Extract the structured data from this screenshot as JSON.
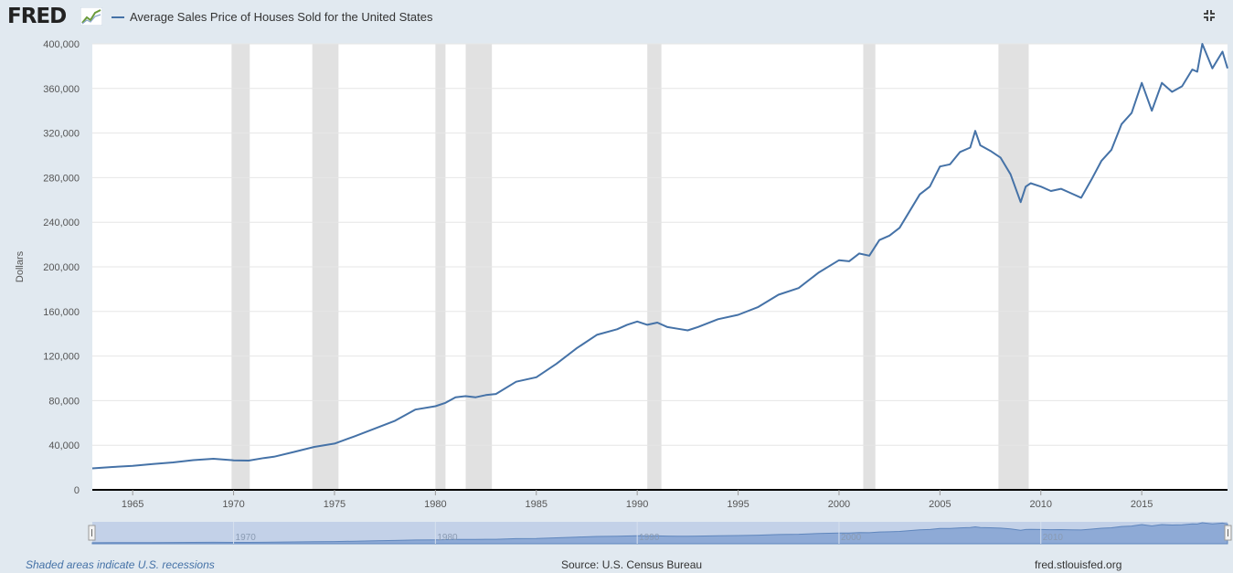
{
  "header": {
    "logo_text": "FRED",
    "title": "Average Sales Price of Houses Sold for the United States",
    "fullscreen_icon": "collapse-icon"
  },
  "footer": {
    "recessions_note": "Shaded areas indicate U.S. recessions",
    "source": "Source: U.S. Census Bureau",
    "site": "fred.stlouisfed.org"
  },
  "colors": {
    "series": "#4572a7",
    "recession": "#e1e1e1",
    "navigator": "#c3d1e8",
    "navigator_fill": "#8eaad6"
  },
  "chart_data": {
    "type": "line",
    "title": "Average Sales Price of Houses Sold for the United States",
    "ylabel": "Dollars",
    "xlabel": "",
    "xlim": [
      1963.0,
      2019.25
    ],
    "ylim": [
      0,
      400000
    ],
    "yticks": [
      0,
      40000,
      80000,
      120000,
      160000,
      200000,
      240000,
      280000,
      320000,
      360000,
      400000
    ],
    "ytick_labels": [
      "0",
      "40,000",
      "80,000",
      "120,000",
      "160,000",
      "200,000",
      "240,000",
      "280,000",
      "320,000",
      "360,000",
      "400,000"
    ],
    "xticks": [
      1965,
      1970,
      1975,
      1980,
      1985,
      1990,
      1995,
      2000,
      2005,
      2010,
      2015
    ],
    "xtick_labels": [
      "1965",
      "1970",
      "1975",
      "1980",
      "1985",
      "1990",
      "1995",
      "2000",
      "2005",
      "2010",
      "2015"
    ],
    "navigator_ticks": [
      1970,
      1980,
      1990,
      2000,
      2010
    ],
    "navigator_tick_labels": [
      "1970",
      "1980",
      "1990",
      "2000",
      "2010"
    ],
    "grid": true,
    "recessions": [
      [
        1969.9,
        1970.8
      ],
      [
        1973.9,
        1975.2
      ],
      [
        1980.0,
        1980.5
      ],
      [
        1981.5,
        1982.8
      ],
      [
        1990.5,
        1991.2
      ],
      [
        2001.2,
        2001.8
      ],
      [
        2007.9,
        2009.4
      ]
    ],
    "series": [
      {
        "x": [
          1963.0,
          1964.0,
          1965.0,
          1966.0,
          1967.0,
          1968.0,
          1969.0,
          1970.0,
          1970.75,
          1971.5,
          1972.0,
          1973.0,
          1974.0,
          1975.0,
          1976.0,
          1977.0,
          1978.0,
          1979.0,
          1980.0,
          1980.5,
          1981.0,
          1981.5,
          1982.0,
          1982.5,
          1983.0,
          1984.0,
          1985.0,
          1986.0,
          1987.0,
          1988.0,
          1989.0,
          1989.5,
          1990.0,
          1990.5,
          1991.0,
          1991.5,
          1992.0,
          1992.5,
          1993.0,
          1994.0,
          1995.0,
          1996.0,
          1997.0,
          1998.0,
          1999.0,
          2000.0,
          2000.5,
          2001.0,
          2001.5,
          2002.0,
          2002.5,
          2003.0,
          2004.0,
          2004.5,
          2005.0,
          2005.5,
          2006.0,
          2006.5,
          2006.75,
          2007.0,
          2007.5,
          2008.0,
          2008.5,
          2009.0,
          2009.25,
          2009.5,
          2010.0,
          2010.5,
          2011.0,
          2011.5,
          2012.0,
          2012.5,
          2013.0,
          2013.5,
          2014.0,
          2014.5,
          2015.0,
          2015.5,
          2016.0,
          2016.5,
          2017.0,
          2017.5,
          2017.75,
          2018.0,
          2018.5,
          2019.0,
          2019.25
        ],
        "y": [
          19300,
          20500,
          21500,
          23200,
          24600,
          26600,
          27900,
          26500,
          26200,
          28500,
          29700,
          34000,
          38500,
          41500,
          48000,
          55000,
          62000,
          72000,
          75000,
          78000,
          83000,
          84000,
          83000,
          85000,
          86000,
          97000,
          101000,
          113000,
          127000,
          139000,
          144000,
          148000,
          151000,
          148000,
          150000,
          146000,
          144500,
          143000,
          146000,
          153000,
          157000,
          164000,
          175000,
          181000,
          195000,
          206000,
          205000,
          212000,
          210000,
          224000,
          228000,
          235000,
          265000,
          272000,
          290000,
          292000,
          303000,
          307000,
          322000,
          309000,
          304000,
          298000,
          283000,
          258000,
          272000,
          275000,
          272000,
          268000,
          270000,
          266000,
          262000,
          278000,
          295000,
          305000,
          328000,
          338000,
          365000,
          340000,
          365000,
          357000,
          362000,
          377000,
          375000,
          400000,
          378000,
          393000,
          378000
        ]
      }
    ]
  }
}
